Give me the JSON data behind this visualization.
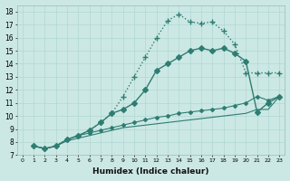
{
  "xlabel": "Humidex (Indice chaleur)",
  "background_color": "#cce8e4",
  "grid_color": "#b0d8d4",
  "line_color": "#2e7d72",
  "xlim": [
    -0.5,
    23.5
  ],
  "ylim": [
    7,
    18.5
  ],
  "xticks": [
    0,
    1,
    2,
    3,
    4,
    5,
    6,
    7,
    8,
    9,
    10,
    11,
    12,
    13,
    14,
    15,
    16,
    17,
    18,
    19,
    20,
    21,
    22,
    23
  ],
  "yticks": [
    7,
    8,
    9,
    10,
    11,
    12,
    13,
    14,
    15,
    16,
    17,
    18
  ],
  "lines": [
    {
      "x": [
        1,
        2,
        3,
        4,
        5,
        6,
        7,
        8,
        9,
        10,
        11,
        12,
        13,
        14,
        15,
        16,
        17,
        18,
        19,
        20,
        21,
        22,
        23
      ],
      "y": [
        7.7,
        7.5,
        7.7,
        8.2,
        8.5,
        8.9,
        9.5,
        10.2,
        11.5,
        13.0,
        14.5,
        16.0,
        17.3,
        17.8,
        17.2,
        17.1,
        17.2,
        16.5,
        15.5,
        13.3,
        13.3,
        13.3,
        13.3
      ],
      "style": ":",
      "marker": "+",
      "markersize": 4,
      "linewidth": 1.0
    },
    {
      "x": [
        1,
        2,
        3,
        4,
        5,
        6,
        7,
        8,
        9,
        10,
        11,
        12,
        13,
        14,
        15,
        16,
        17,
        18,
        19,
        20,
        21,
        22,
        23
      ],
      "y": [
        7.7,
        7.5,
        7.7,
        8.2,
        8.5,
        8.9,
        9.5,
        10.2,
        10.5,
        11.0,
        12.0,
        13.5,
        14.0,
        14.5,
        15.0,
        15.2,
        15.0,
        15.2,
        14.8,
        14.2,
        10.3,
        11.0,
        11.5
      ],
      "style": "-",
      "marker": "D",
      "markersize": 3,
      "linewidth": 1.0
    },
    {
      "x": [
        1,
        2,
        3,
        4,
        5,
        6,
        7,
        8,
        9,
        10,
        11,
        12,
        13,
        14,
        15,
        16,
        17,
        18,
        19,
        20,
        21,
        22,
        23
      ],
      "y": [
        7.7,
        7.5,
        7.7,
        8.2,
        8.5,
        8.7,
        8.9,
        9.1,
        9.3,
        9.5,
        9.7,
        9.9,
        10.0,
        10.2,
        10.3,
        10.4,
        10.5,
        10.6,
        10.8,
        11.0,
        11.5,
        11.2,
        11.5
      ],
      "style": "-",
      "marker": "D",
      "markersize": 2,
      "linewidth": 0.8
    },
    {
      "x": [
        1,
        2,
        3,
        4,
        5,
        6,
        7,
        8,
        9,
        10,
        11,
        12,
        13,
        14,
        15,
        16,
        17,
        18,
        19,
        20,
        21,
        22,
        23
      ],
      "y": [
        7.7,
        7.5,
        7.7,
        8.1,
        8.3,
        8.5,
        8.7,
        8.9,
        9.1,
        9.2,
        9.3,
        9.4,
        9.5,
        9.6,
        9.7,
        9.8,
        9.9,
        10.0,
        10.1,
        10.2,
        10.5,
        10.5,
        11.5
      ],
      "style": "-",
      "marker": null,
      "markersize": 0,
      "linewidth": 0.8
    }
  ]
}
